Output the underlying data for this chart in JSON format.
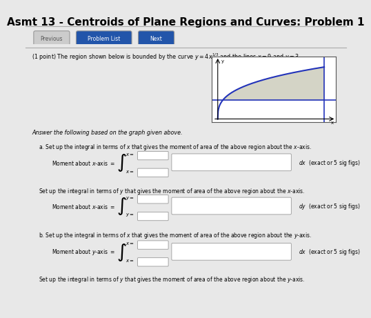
{
  "title": "Asmt 13 - Centroids of Plane Regions and Curves: Problem 1",
  "title_fontsize": 11,
  "bg_color": "#e8e8e8",
  "nav_buttons": [
    "Previous",
    "Problem List",
    "Next"
  ],
  "nav_button_colors": [
    "#cccccc",
    "#2255aa",
    "#2255aa"
  ],
  "problem_text": "(1 point) The region shown below is bounded by the curve y = 4x¹ᐟ³ and the lines x = 9 and y = 3",
  "part_a_text1": "a. Set up the integral in terms of x that gives the moment of area of the above region about the x-axis.",
  "part_a_text2": "Set up the integral in terms of y that gives the moment of area of the above region about the x-axis.",
  "part_b_text1": "b. Set up the integral in terms of x that gives the moment of area of the above region about the y-axis.",
  "part_b_text2": "Set up the integral in terms of y that gives the moment of area of the above region about the y-axis.",
  "moment_x_label1": "Moment about x-axis =",
  "moment_x_label2": "Moment about x-axis =",
  "moment_y_label": "Moment about y-axis =",
  "dx_label": "dx  (exact or 5 sig figs)",
  "dy_label": "dy  (exact or 5 sig figs)",
  "curve_color": "#2233bb",
  "fill_color": "#d0d0c0",
  "graph_bg": "#ffffff",
  "graph_border": "#555555"
}
